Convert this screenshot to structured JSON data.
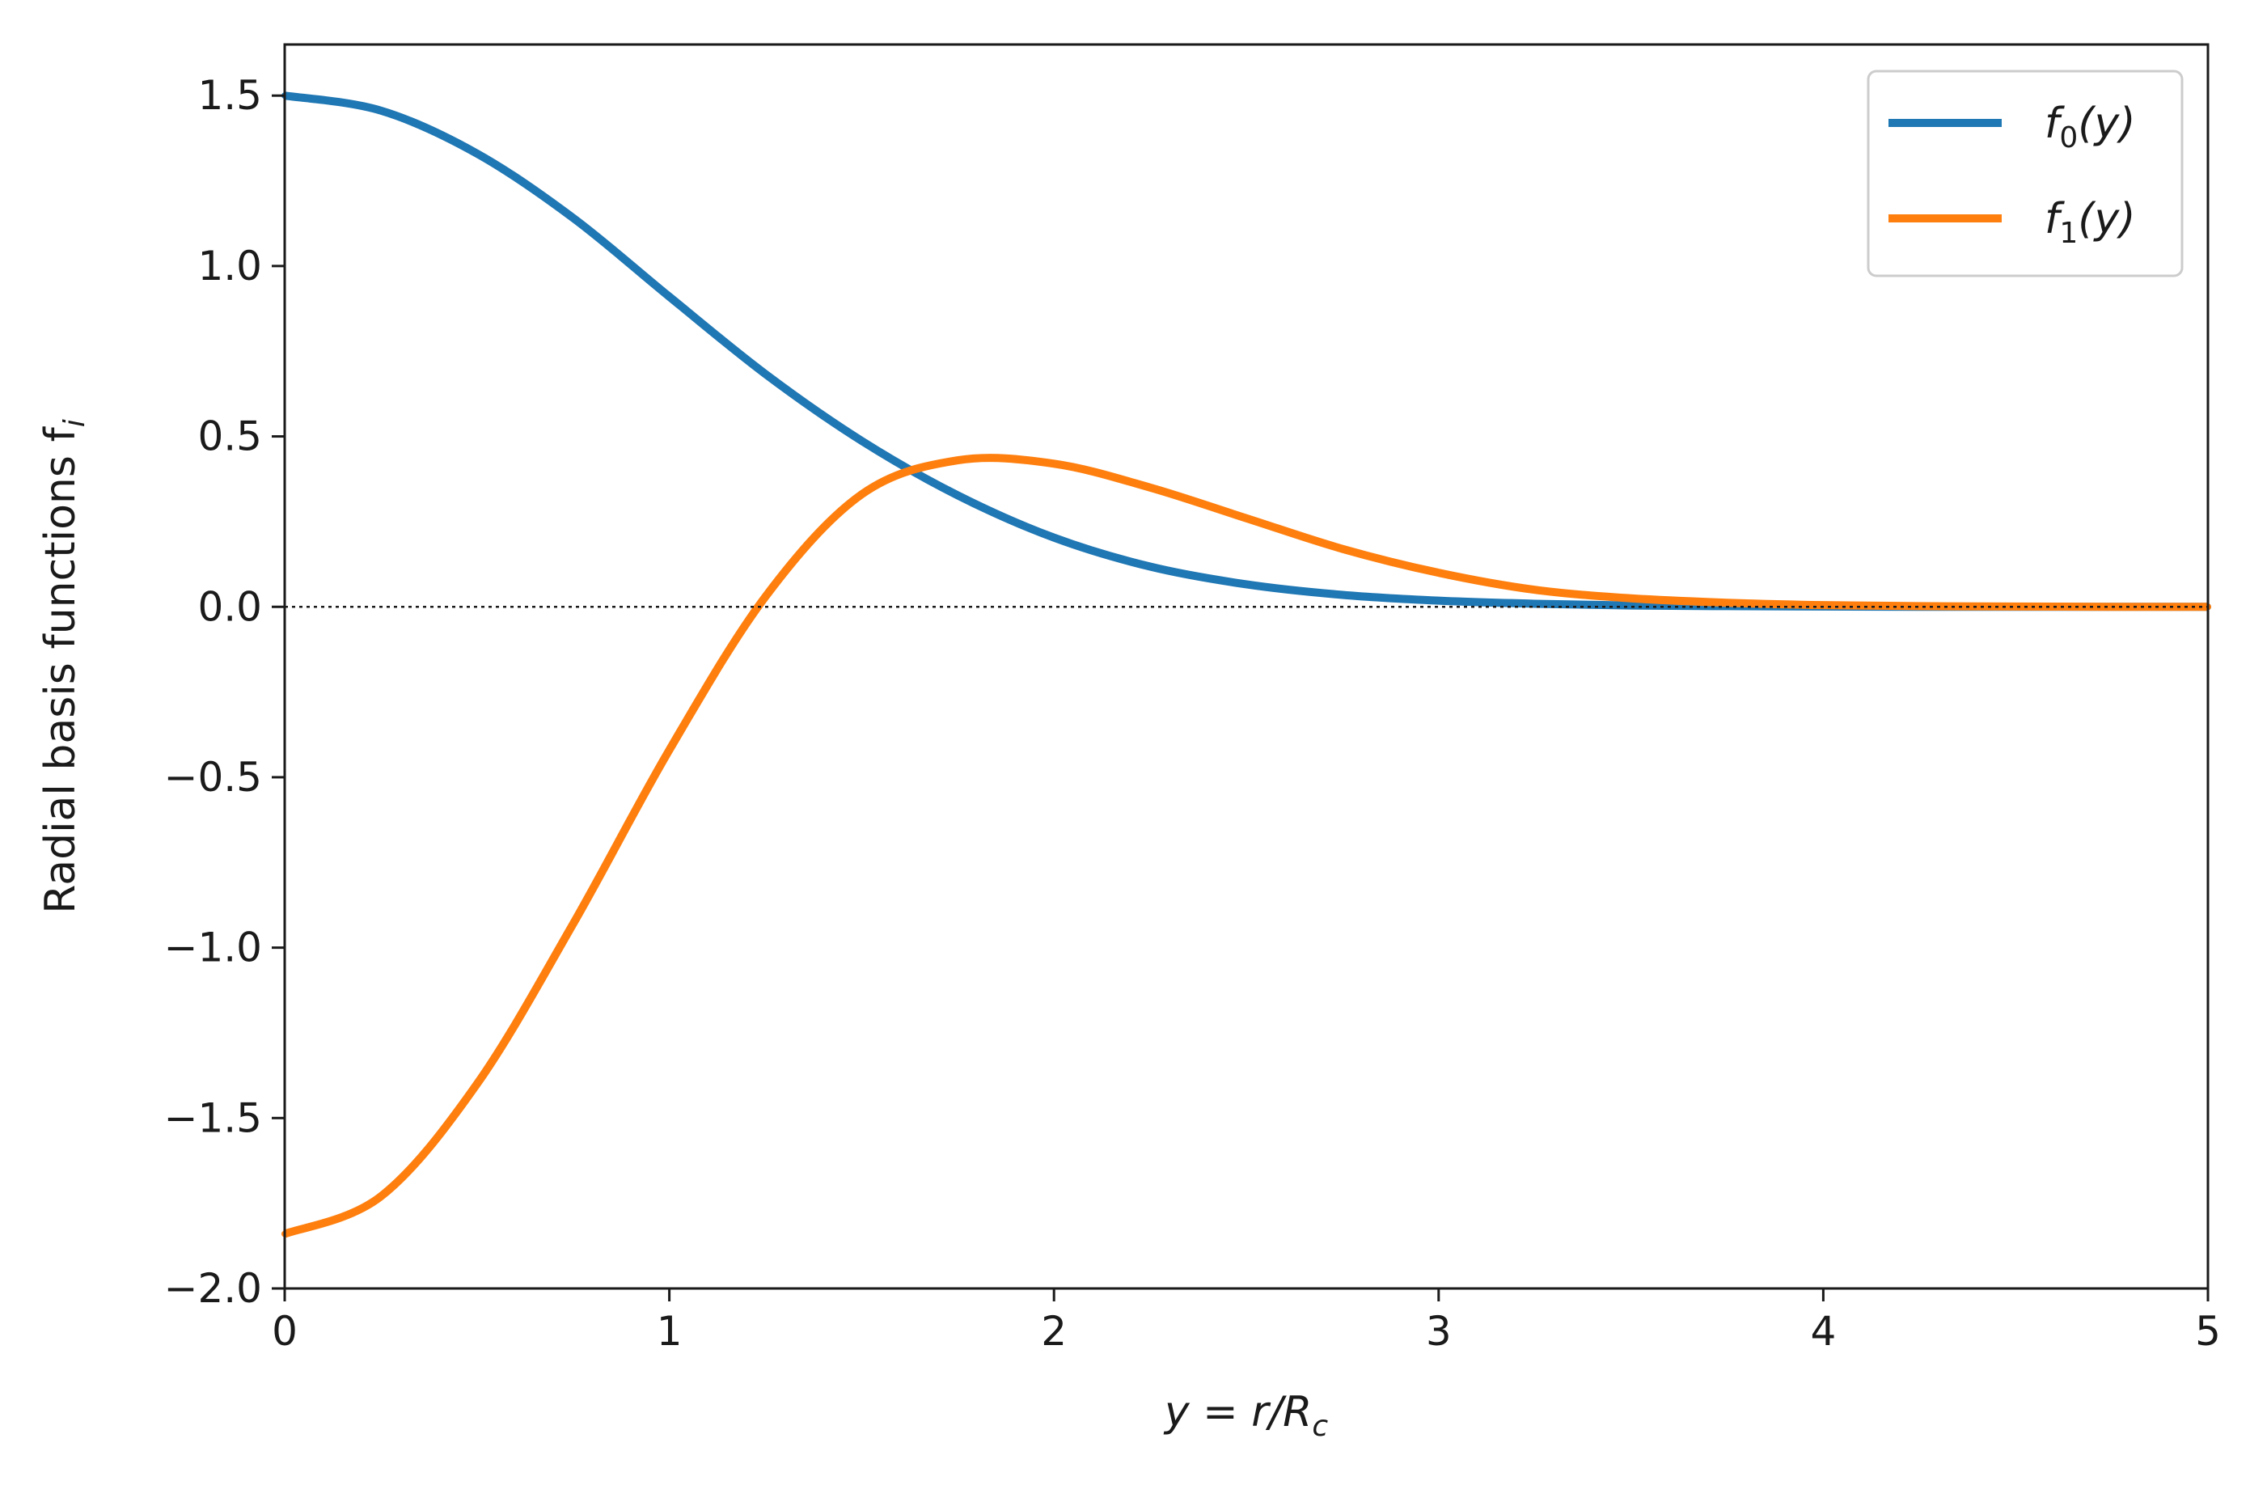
{
  "chart_data": {
    "type": "line",
    "xlabel": "y = r/R",
    "xlabel_sub": "c",
    "ylabel": "Radial basis functions f",
    "ylabel_sub": "i",
    "xlim": [
      0,
      5
    ],
    "ylim": [
      -2.0,
      1.65
    ],
    "x_ticks": [
      0,
      1,
      2,
      3,
      4,
      5
    ],
    "x_tick_labels": [
      "0",
      "1",
      "2",
      "3",
      "4",
      "5"
    ],
    "y_ticks": [
      1.5,
      1.0,
      0.5,
      0.0,
      -0.5,
      -1.0,
      -1.5,
      -2.0
    ],
    "y_tick_labels": [
      "1.5",
      "1.0",
      "0.5",
      "0.0",
      "−0.5",
      "−1.0",
      "−1.5",
      "−2.0"
    ],
    "grid": false,
    "zero_line": "dotted",
    "legend_position": "top-right",
    "series": [
      {
        "name": "f0(y)",
        "label_base": "f",
        "label_sub": "0",
        "label_arg": "(y)",
        "color": "#1f77b4",
        "x": [
          0,
          0.25,
          0.5,
          0.75,
          1.0,
          1.25,
          1.5,
          1.75,
          2.0,
          2.25,
          2.5,
          2.75,
          3.0,
          3.25,
          3.5,
          3.75,
          4.0,
          4.25,
          4.5,
          4.75,
          5.0
        ],
        "values": [
          1.5,
          1.456,
          1.33,
          1.141,
          0.91,
          0.683,
          0.487,
          0.327,
          0.203,
          0.118,
          0.066,
          0.035,
          0.018,
          0.009,
          0.004,
          0.002,
          0.001,
          0.0,
          0.0,
          0.0,
          0.0
        ]
      },
      {
        "name": "f1(y)",
        "label_base": "f",
        "label_sub": "1",
        "label_arg": "(y)",
        "color": "#ff7f0e",
        "x": [
          0,
          0.25,
          0.5,
          0.75,
          1.0,
          1.25,
          1.5,
          1.75,
          2.0,
          2.25,
          2.5,
          2.75,
          3.0,
          3.25,
          3.5,
          3.75,
          4.0,
          4.25,
          4.5,
          4.75,
          5.0
        ],
        "values": [
          -1.84,
          -1.73,
          -1.4,
          -0.93,
          -0.42,
          0.03,
          0.33,
          0.43,
          0.42,
          0.35,
          0.26,
          0.17,
          0.1,
          0.05,
          0.025,
          0.012,
          0.005,
          0.002,
          0.001,
          0.0,
          0.0
        ]
      }
    ]
  }
}
